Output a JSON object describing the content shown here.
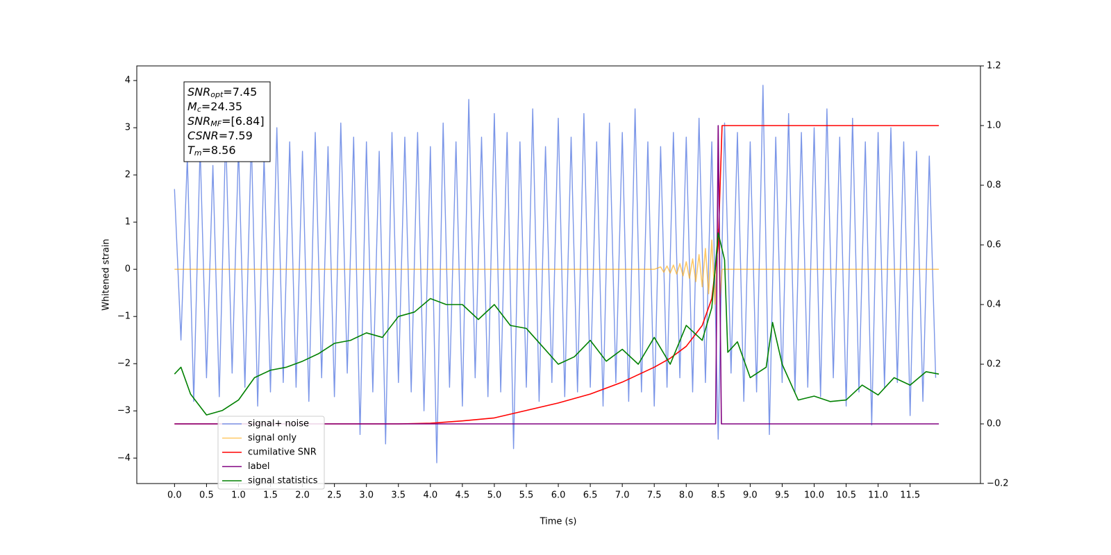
{
  "chart_data": {
    "type": "line",
    "xlabel": "Time (s)",
    "ylabel": "Whitened strain",
    "xlim": [
      -0.59,
      12.6
    ],
    "ylim": [
      -4.54,
      4.31
    ],
    "y2lim": [
      -0.2,
      1.2
    ],
    "xticks": [
      {
        "value": 0,
        "label": "0.0"
      },
      {
        "value": 0.5,
        "label": "0.5"
      },
      {
        "value": 1,
        "label": "1.0"
      },
      {
        "value": 1.5,
        "label": "1.5"
      },
      {
        "value": 2,
        "label": "2.0"
      },
      {
        "value": 2.5,
        "label": "2.5"
      },
      {
        "value": 3,
        "label": "3.0"
      },
      {
        "value": 3.5,
        "label": "3.5"
      },
      {
        "value": 4,
        "label": "4.0"
      },
      {
        "value": 4.5,
        "label": "4.5"
      },
      {
        "value": 5,
        "label": "5.0"
      },
      {
        "value": 5.5,
        "label": "5.5"
      },
      {
        "value": 6,
        "label": "6.0"
      },
      {
        "value": 6.5,
        "label": "6.5"
      },
      {
        "value": 7,
        "label": "7.0"
      },
      {
        "value": 7.5,
        "label": "7.5"
      },
      {
        "value": 8,
        "label": "8.0"
      },
      {
        "value": 8.5,
        "label": "8.5"
      },
      {
        "value": 9,
        "label": "9.0"
      },
      {
        "value": 9.5,
        "label": "9.5"
      },
      {
        "value": 10,
        "label": "10.0"
      },
      {
        "value": 10.5,
        "label": "10.5"
      },
      {
        "value": 11,
        "label": "11.0"
      },
      {
        "value": 11.5,
        "label": "11.5"
      }
    ],
    "yticks": [
      {
        "value": -4,
        "label": "−4"
      },
      {
        "value": -3,
        "label": "−3"
      },
      {
        "value": -2,
        "label": "−2"
      },
      {
        "value": -1,
        "label": "−1"
      },
      0,
      1,
      2,
      3,
      4
    ],
    "y2ticks": [
      {
        "value": -0.2,
        "label": "−0.2"
      },
      {
        "value": 0,
        "label": "0.0"
      },
      {
        "value": 0.2,
        "label": "0.2"
      },
      {
        "value": 0.4,
        "label": "0.4"
      },
      {
        "value": 0.6,
        "label": "0.6"
      },
      {
        "value": 0.8,
        "label": "0.8"
      },
      {
        "value": 1,
        "label": "1.0"
      },
      {
        "value": 1.2,
        "label": "1.2"
      }
    ],
    "legend": "lower left",
    "annotations": [
      {
        "main": "SNR",
        "sub": "opt",
        "rest": "=7.45"
      },
      {
        "main": "M",
        "sub": "c",
        "rest": "=24.35"
      },
      {
        "main": "SNR",
        "sub": "MF",
        "rest": "=[6.84]"
      },
      {
        "main": "CSNR",
        "rest": "=7.59"
      },
      {
        "main": "T",
        "sub": "m",
        "rest": "=8.56"
      }
    ],
    "series": [
      {
        "name": "signal+ noise",
        "color": "#7b96e8",
        "x": [
          0,
          0.1,
          0.2,
          0.3,
          0.4,
          0.5,
          0.6,
          0.7,
          0.8,
          0.9,
          1,
          1.1,
          1.2,
          1.3,
          1.4,
          1.5,
          1.6,
          1.7,
          1.8,
          1.9,
          2,
          2.1,
          2.2,
          2.3,
          2.4,
          2.5,
          2.6,
          2.7,
          2.8,
          2.9,
          3,
          3.1,
          3.2,
          3.3,
          3.4,
          3.5,
          3.6,
          3.7,
          3.8,
          3.9,
          4,
          4.1,
          4.2,
          4.3,
          4.4,
          4.5,
          4.6,
          4.7,
          4.8,
          4.9,
          5,
          5.1,
          5.2,
          5.3,
          5.4,
          5.5,
          5.6,
          5.7,
          5.8,
          5.9,
          6,
          6.1,
          6.2,
          6.3,
          6.4,
          6.5,
          6.6,
          6.7,
          6.8,
          6.9,
          7,
          7.1,
          7.2,
          7.3,
          7.4,
          7.5,
          7.6,
          7.7,
          7.8,
          7.9,
          8,
          8.1,
          8.2,
          8.3,
          8.4,
          8.5,
          8.6,
          8.7,
          8.8,
          8.9,
          9,
          9.1,
          9.2,
          9.3,
          9.4,
          9.5,
          9.6,
          9.7,
          9.8,
          9.9,
          10,
          10.1,
          10.2,
          10.3,
          10.4,
          10.5,
          10.6,
          10.7,
          10.8,
          10.9,
          11,
          11.1,
          11.2,
          11.3,
          11.4,
          11.5,
          11.6,
          11.7,
          11.8,
          11.9
        ],
        "values": [
          1.7,
          -1.5,
          2.4,
          -2.8,
          2.6,
          -2.3,
          2.2,
          -2.7,
          2.9,
          -2.2,
          2.6,
          -2.5,
          2.8,
          -2.9,
          2.4,
          -2.6,
          3.0,
          -2.4,
          2.7,
          -2.5,
          2.5,
          -2.8,
          2.9,
          -2.3,
          2.6,
          -2.7,
          3.1,
          -2.2,
          2.8,
          -3.5,
          2.7,
          -2.6,
          2.5,
          -3.7,
          2.9,
          -2.4,
          2.8,
          -2.6,
          2.9,
          -3.0,
          2.6,
          -4.1,
          3.1,
          -2.5,
          2.7,
          -2.9,
          3.6,
          -2.3,
          2.8,
          -2.7,
          3.3,
          -2.6,
          2.9,
          -3.8,
          2.7,
          -2.5,
          3.4,
          -2.8,
          2.6,
          -2.4,
          3.2,
          -2.7,
          2.8,
          -2.6,
          3.3,
          -2.5,
          2.7,
          -2.9,
          3.1,
          -2.4,
          2.9,
          -2.8,
          3.4,
          -2.6,
          2.7,
          -2.9,
          2.6,
          -2.5,
          2.9,
          -2.3,
          2.8,
          -2.6,
          3.2,
          -2.4,
          2.7,
          -3.6,
          3.1,
          -2.2,
          2.9,
          -2.8,
          2.7,
          -2.6,
          3.9,
          -3.5,
          2.8,
          -2.4,
          3.3,
          -2.6,
          2.9,
          -2.5,
          3.0,
          -2.7,
          3.4,
          -2.3,
          2.8,
          -2.9,
          3.2,
          -2.6,
          2.7,
          -3.3,
          2.9,
          -2.5,
          3.0,
          -2.4,
          2.7,
          -3.1,
          2.5,
          -2.8,
          2.4,
          -2.3
        ]
      },
      {
        "name": "signal only",
        "color": "#ffa500",
        "x": [
          0,
          7.5,
          7.6,
          7.65,
          7.7,
          7.75,
          7.8,
          7.85,
          7.9,
          7.95,
          8,
          8.05,
          8.1,
          8.15,
          8.2,
          8.25,
          8.3,
          8.35,
          8.4,
          8.45,
          8.5,
          8.53,
          8.56,
          11.95
        ],
        "values": [
          0,
          0,
          0.05,
          -0.06,
          0.07,
          -0.08,
          0.09,
          -0.1,
          0.12,
          -0.14,
          0.16,
          -0.19,
          0.22,
          -0.26,
          0.31,
          -0.37,
          0.44,
          -0.52,
          0.62,
          -0.74,
          0.85,
          -0.6,
          0,
          0
        ]
      },
      {
        "name": "cumilative SNR",
        "color": "#ff0000",
        "axis": "y2",
        "x": [
          0,
          3.5,
          4,
          4.5,
          5,
          5.5,
          6,
          6.5,
          7,
          7.5,
          7.75,
          8,
          8.25,
          8.4,
          8.5,
          8.56,
          11.95
        ],
        "values": [
          0,
          0,
          0.002,
          0.01,
          0.02,
          0.045,
          0.07,
          0.1,
          0.14,
          0.19,
          0.22,
          0.26,
          0.33,
          0.42,
          0.6,
          1.0,
          1.0
        ]
      },
      {
        "name": "label",
        "color": "#800080",
        "axis": "y2",
        "x": [
          0,
          8.46,
          8.5,
          8.55,
          11.95
        ],
        "values": [
          0,
          0,
          1,
          0,
          0
        ]
      },
      {
        "name": "signal statistics",
        "color": "#008000",
        "axis": "y2",
        "x": [
          0,
          0.1,
          0.25,
          0.5,
          0.75,
          1,
          1.25,
          1.5,
          1.75,
          2,
          2.25,
          2.5,
          2.75,
          3,
          3.25,
          3.5,
          3.75,
          4,
          4.25,
          4.5,
          4.75,
          5,
          5.25,
          5.5,
          5.75,
          6,
          6.25,
          6.5,
          6.75,
          7,
          7.25,
          7.5,
          7.75,
          8,
          8.25,
          8.4,
          8.5,
          8.6,
          8.65,
          8.8,
          9,
          9.25,
          9.35,
          9.5,
          9.75,
          10,
          10.25,
          10.5,
          10.75,
          11,
          11.25,
          11.5,
          11.75,
          11.95
        ],
        "values": [
          0.167,
          0.19,
          0.1,
          0.03,
          0.045,
          0.08,
          0.155,
          0.18,
          0.19,
          0.21,
          0.235,
          0.27,
          0.28,
          0.305,
          0.29,
          0.36,
          0.375,
          0.42,
          0.4,
          0.4,
          0.35,
          0.4,
          0.33,
          0.32,
          0.26,
          0.2,
          0.225,
          0.28,
          0.21,
          0.25,
          0.2,
          0.29,
          0.2,
          0.33,
          0.28,
          0.39,
          0.64,
          0.55,
          0.24,
          0.275,
          0.155,
          0.19,
          0.34,
          0.2,
          0.08,
          0.093,
          0.075,
          0.08,
          0.13,
          0.097,
          0.155,
          0.13,
          0.175,
          0.167
        ]
      }
    ]
  }
}
